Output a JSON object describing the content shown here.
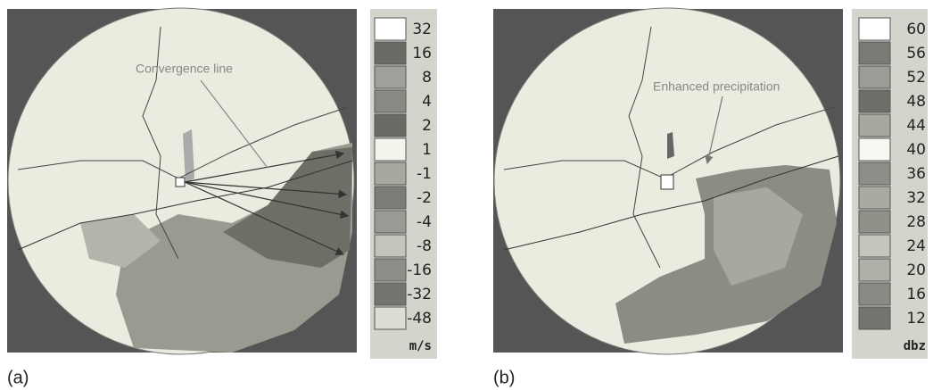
{
  "panels": [
    {
      "label": "(a)",
      "annotation": "Convergence line",
      "unit": "m/s",
      "legend": [
        "32",
        "16",
        "8",
        "4",
        "2",
        "1",
        "-1",
        "-2",
        "-4",
        "-8",
        "-16",
        "-32",
        "-48"
      ]
    },
    {
      "label": "(b)",
      "annotation": "Enhanced precipitation",
      "unit": "dbz",
      "legend": [
        "60",
        "56",
        "52",
        "48",
        "44",
        "40",
        "36",
        "32",
        "28",
        "24",
        "20",
        "16",
        "12"
      ]
    }
  ]
}
